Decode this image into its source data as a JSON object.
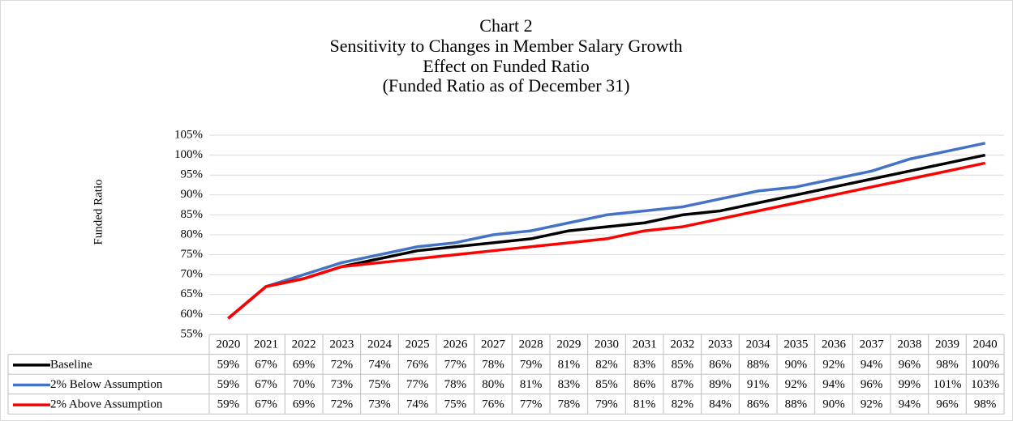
{
  "chart_data": {
    "type": "line",
    "title": "Chart 2",
    "subtitles": [
      "Sensitivity to Changes in Member Salary Growth",
      "Effect on Funded Ratio",
      "(Funded Ratio as of December 31)"
    ],
    "y_label": "Funded Ratio",
    "categories": [
      "2020",
      "2021",
      "2022",
      "2023",
      "2024",
      "2025",
      "2026",
      "2027",
      "2028",
      "2029",
      "2030",
      "2031",
      "2032",
      "2033",
      "2034",
      "2035",
      "2036",
      "2037",
      "2038",
      "2039",
      "2040"
    ],
    "ylim": [
      55,
      105
    ],
    "yticks": [
      {
        "value": 55,
        "label": "55%"
      },
      {
        "value": 60,
        "label": "60%"
      },
      {
        "value": 65,
        "label": "65%"
      },
      {
        "value": 70,
        "label": "70%"
      },
      {
        "value": 75,
        "label": "75%"
      },
      {
        "value": 80,
        "label": "80%"
      },
      {
        "value": 85,
        "label": "85%"
      },
      {
        "value": 90,
        "label": "90%"
      },
      {
        "value": 95,
        "label": "95%"
      },
      {
        "value": 100,
        "label": "100%"
      },
      {
        "value": 105,
        "label": "105%"
      }
    ],
    "grid": true,
    "series": [
      {
        "name": "Baseline",
        "color": "#000000",
        "values": [
          59,
          67,
          69,
          72,
          74,
          76,
          77,
          78,
          79,
          81,
          82,
          83,
          85,
          86,
          88,
          90,
          92,
          94,
          96,
          98,
          100
        ],
        "value_labels": [
          "59%",
          "67%",
          "69%",
          "72%",
          "74%",
          "76%",
          "77%",
          "78%",
          "79%",
          "81%",
          "82%",
          "83%",
          "85%",
          "86%",
          "88%",
          "90%",
          "92%",
          "94%",
          "96%",
          "98%",
          "100%"
        ]
      },
      {
        "name": "2% Below Assumption",
        "color": "#4472c4",
        "values": [
          59,
          67,
          70,
          73,
          75,
          77,
          78,
          80,
          81,
          83,
          85,
          86,
          87,
          89,
          91,
          92,
          94,
          96,
          99,
          101,
          103
        ],
        "value_labels": [
          "59%",
          "67%",
          "70%",
          "73%",
          "75%",
          "77%",
          "78%",
          "80%",
          "81%",
          "83%",
          "85%",
          "86%",
          "87%",
          "89%",
          "91%",
          "92%",
          "94%",
          "96%",
          "99%",
          "101%",
          "103%"
        ]
      },
      {
        "name": "2% Above Assumption",
        "color": "#ff0000",
        "values": [
          59,
          67,
          69,
          72,
          73,
          74,
          75,
          76,
          77,
          78,
          79,
          81,
          82,
          84,
          86,
          88,
          90,
          92,
          94,
          96,
          98
        ],
        "value_labels": [
          "59%",
          "67%",
          "69%",
          "72%",
          "73%",
          "74%",
          "75%",
          "76%",
          "77%",
          "78%",
          "79%",
          "81%",
          "82%",
          "84%",
          "86%",
          "88%",
          "90%",
          "92%",
          "94%",
          "96%",
          "98%"
        ]
      }
    ]
  }
}
